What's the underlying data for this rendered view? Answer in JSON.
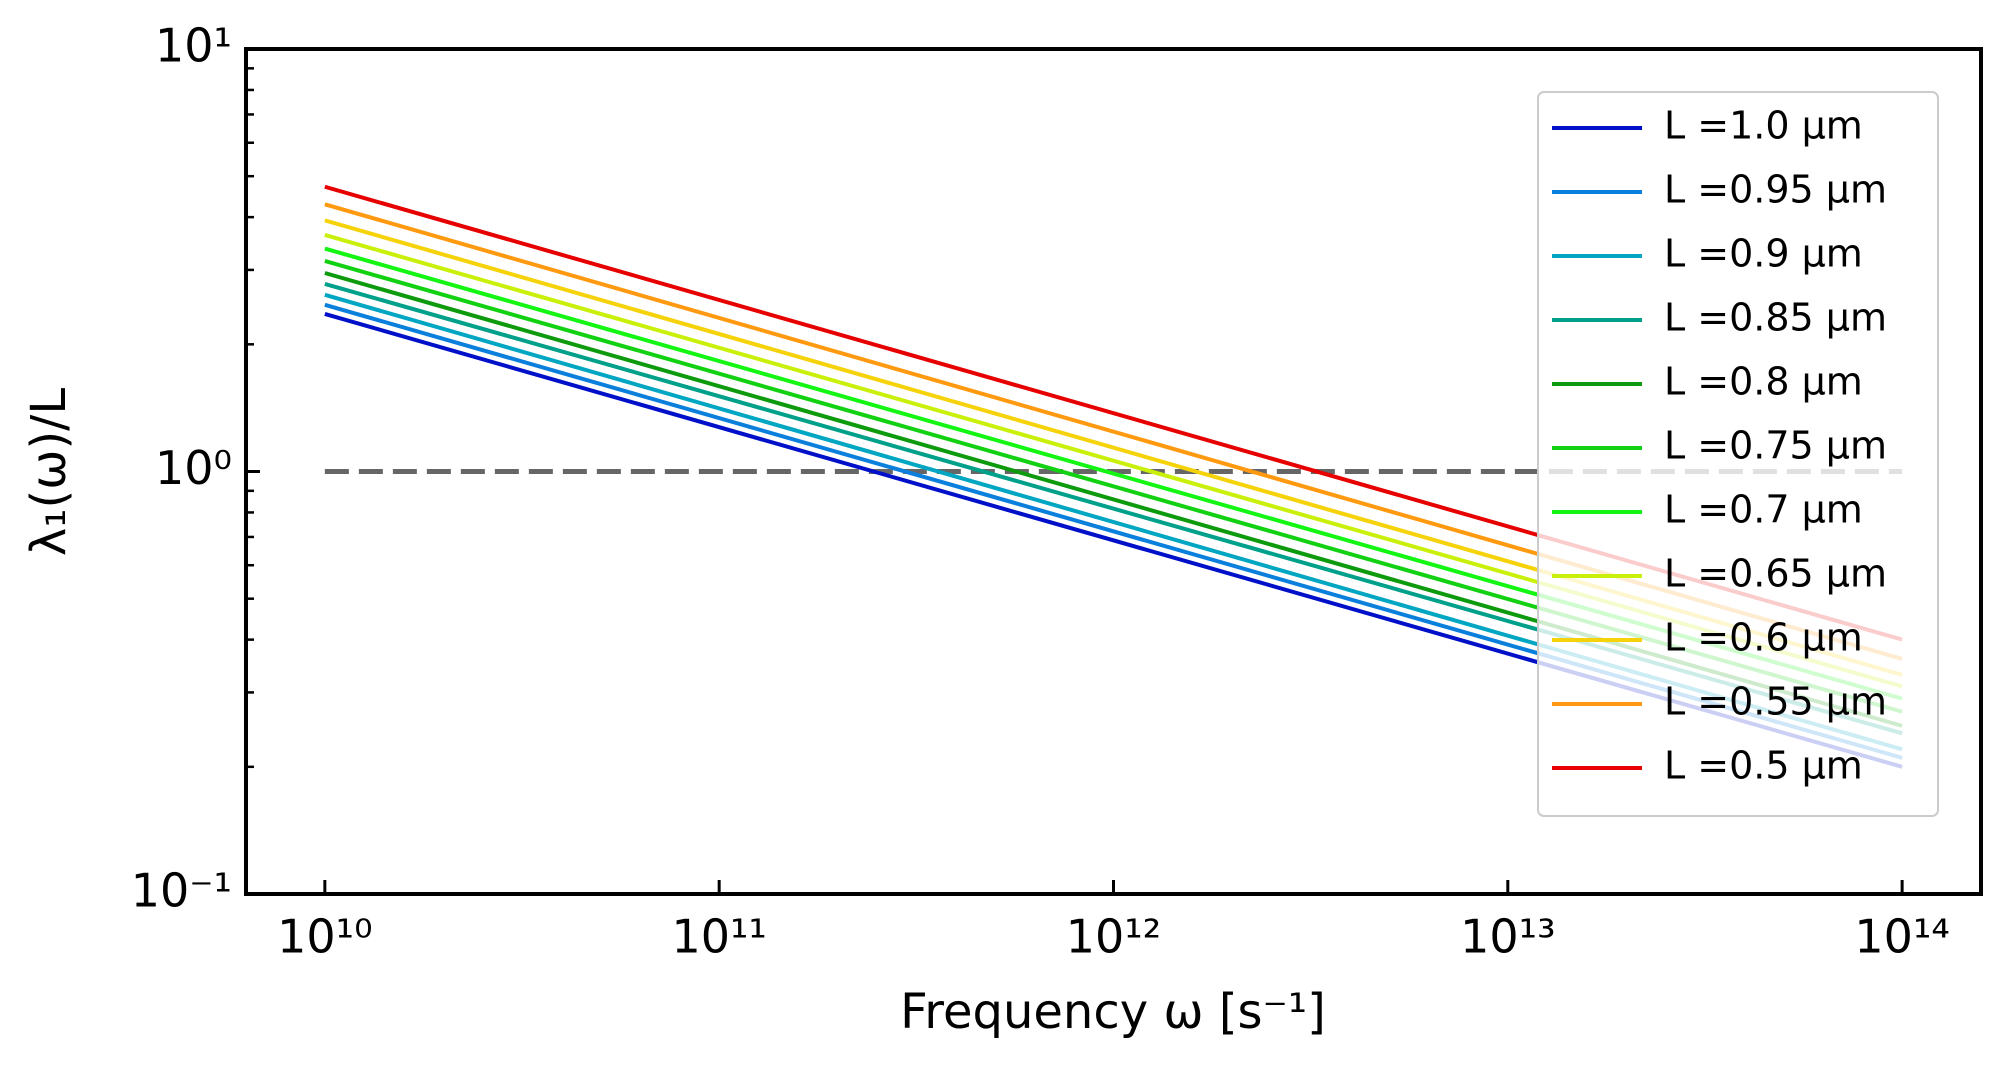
{
  "chart_data": {
    "type": "line",
    "x_label": "Frequency ω [s⁻¹]",
    "y_label": "λ₁(ω)/L",
    "x": [
      10000000000.0,
      100000000000000.0
    ],
    "series": [
      {
        "name": "L =1.0 μm",
        "color": "#0010c8",
        "values": [
          2.36,
          0.2
        ]
      },
      {
        "name": "L =0.95 μm",
        "color": "#0a80dc",
        "values": [
          2.48,
          0.21
        ]
      },
      {
        "name": "L =0.9 μm",
        "color": "#00a6c2",
        "values": [
          2.62,
          0.22
        ]
      },
      {
        "name": "L =0.85 μm",
        "color": "#00a08a",
        "values": [
          2.78,
          0.24
        ]
      },
      {
        "name": "L =0.8 μm",
        "color": "#0d9a0d",
        "values": [
          2.95,
          0.25
        ]
      },
      {
        "name": "L =0.75 μm",
        "color": "#12d012",
        "values": [
          3.15,
          0.27
        ]
      },
      {
        "name": "L =0.7 μm",
        "color": "#14f514",
        "values": [
          3.37,
          0.29
        ]
      },
      {
        "name": "L =0.65 μm",
        "color": "#c8f00a",
        "values": [
          3.63,
          0.31
        ]
      },
      {
        "name": "L =0.6 μm",
        "color": "#f5d20a",
        "values": [
          3.93,
          0.33
        ]
      },
      {
        "name": "L =0.55 μm",
        "color": "#ff9a10",
        "values": [
          4.29,
          0.36
        ]
      },
      {
        "name": "L =0.5 μm",
        "color": "#e60000",
        "values": [
          4.72,
          0.4
        ]
      }
    ],
    "reference_line": {
      "y": 1,
      "x": [
        10000000000.0,
        100000000000000.0
      ],
      "color": "#666666",
      "style": "dashed"
    },
    "xscale": "log",
    "yscale": "log",
    "xlim": [
      6310000000.0,
      158500000000000.0
    ],
    "ylim": [
      0.1,
      10
    ],
    "xticks": [
      {
        "value": 10000000000.0,
        "label": "10¹⁰"
      },
      {
        "value": 100000000000.0,
        "label": "10¹¹"
      },
      {
        "value": 1000000000000.0,
        "label": "10¹²"
      },
      {
        "value": 10000000000000.0,
        "label": "10¹³"
      },
      {
        "value": 100000000000000.0,
        "label": "10¹⁴"
      }
    ],
    "yticks": [
      {
        "value": 0.1,
        "label": "10⁻¹"
      },
      {
        "value": 1,
        "label": "10⁰"
      },
      {
        "value": 10,
        "label": "10¹"
      }
    ],
    "yminorticks": [
      0.2,
      0.3,
      0.4,
      0.5,
      0.6,
      0.7,
      0.8,
      0.9,
      2,
      3,
      4,
      5,
      6,
      7,
      8,
      9
    ],
    "grid": false,
    "legend": "upper right"
  }
}
